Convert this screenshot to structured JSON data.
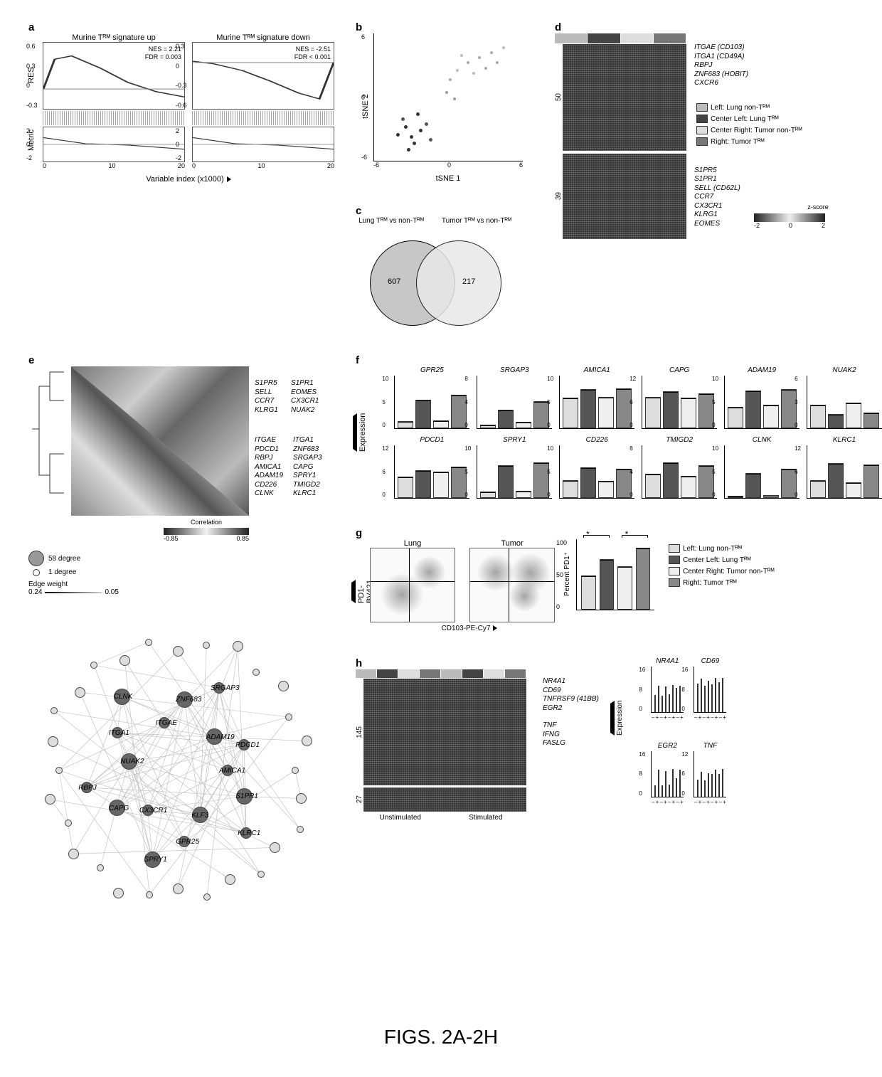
{
  "figure_caption": "FIGS. 2A-2H",
  "colors": {
    "group1": "#dddddd",
    "group2": "#555555",
    "group3": "#efefef",
    "group4": "#888888"
  },
  "panel_a": {
    "label": "a",
    "left": {
      "title": "Murine Tᴿᴹ signature up",
      "nes": "NES = 2.21",
      "fdr": "FDR = 0.003",
      "y_ticks": [
        "0.6",
        "0.3",
        "0",
        "-0.3"
      ]
    },
    "right": {
      "title": "Murine Tᴿᴹ signature down",
      "nes": "NES = -2.51",
      "fdr": "FDR < 0.001",
      "y_ticks": [
        "0.3",
        "0",
        "-0.3",
        "-0.6"
      ]
    },
    "y_label": "RES",
    "metric_label": "Metric",
    "metric_ticks": [
      "2",
      "0",
      "-2"
    ],
    "x_label": "Variable index (x1000)",
    "x_ticks": [
      "0",
      "10",
      "20"
    ]
  },
  "panel_b": {
    "label": "b",
    "x_label": "tSNE 1",
    "y_label": "tSNE 2",
    "ticks_x": [
      "-6",
      "0",
      "6"
    ],
    "ticks_y": [
      "6",
      "0",
      "-6"
    ],
    "points": [
      {
        "x": 20,
        "y": 72,
        "c": "#333",
        "s": 5
      },
      {
        "x": 24,
        "y": 80,
        "c": "#333",
        "s": 5
      },
      {
        "x": 18,
        "y": 66,
        "c": "#555",
        "s": 5
      },
      {
        "x": 30,
        "y": 75,
        "c": "#333",
        "s": 5
      },
      {
        "x": 26,
        "y": 85,
        "c": "#333",
        "s": 5
      },
      {
        "x": 15,
        "y": 78,
        "c": "#333",
        "s": 5
      },
      {
        "x": 34,
        "y": 70,
        "c": "#555",
        "s": 5
      },
      {
        "x": 28,
        "y": 62,
        "c": "#333",
        "s": 5
      },
      {
        "x": 22,
        "y": 90,
        "c": "#333",
        "s": 5
      },
      {
        "x": 37,
        "y": 82,
        "c": "#555",
        "s": 5
      },
      {
        "x": 62,
        "y": 22,
        "c": "#aaa",
        "s": 4
      },
      {
        "x": 70,
        "y": 18,
        "c": "#aaa",
        "s": 4
      },
      {
        "x": 55,
        "y": 28,
        "c": "#bbb",
        "s": 4
      },
      {
        "x": 78,
        "y": 14,
        "c": "#aaa",
        "s": 4
      },
      {
        "x": 66,
        "y": 30,
        "c": "#bbb",
        "s": 4
      },
      {
        "x": 82,
        "y": 22,
        "c": "#aaa",
        "s": 4
      },
      {
        "x": 58,
        "y": 16,
        "c": "#bbb",
        "s": 4
      },
      {
        "x": 74,
        "y": 26,
        "c": "#aaa",
        "s": 4
      },
      {
        "x": 86,
        "y": 10,
        "c": "#bbb",
        "s": 4
      },
      {
        "x": 50,
        "y": 35,
        "c": "#aaa",
        "s": 4
      },
      {
        "x": 48,
        "y": 45,
        "c": "#999",
        "s": 4
      },
      {
        "x": 53,
        "y": 50,
        "c": "#999",
        "s": 4
      }
    ]
  },
  "panel_c": {
    "label": "c",
    "left_title": "Lung Tᴿᴹ vs non-Tᴿᴹ",
    "right_title": "Tumor Tᴿᴹ vs non-Tᴿᴹ",
    "left_n": "607",
    "mid_n": "",
    "right_n": "217"
  },
  "panel_d": {
    "label": "d",
    "header_colors": [
      "#bbbbbb",
      "#444444",
      "#dedede",
      "#777777"
    ],
    "top_n": "50",
    "top_genes": [
      "ITGAE (CD103)",
      "ITGA1 (CD49A)",
      "RBPJ",
      "ZNF683 (HOBIT)",
      "CXCR6"
    ],
    "bot_n": "39",
    "bot_genes": [
      "S1PR5",
      "S1PR1",
      "SELL (CD62L)",
      "CCR7",
      "CX3CR1",
      "KLRG1",
      "EOMES"
    ],
    "legend": [
      "Left: Lung non-Tᴿᴹ",
      "Center Left: Lung Tᴿᴹ",
      "Center Right: Tumor non-Tᴿᴹ",
      "Right: Tumor Tᴿᴹ"
    ],
    "zscore_label": "z-score",
    "zscore_range": [
      "-2",
      "0",
      "2"
    ]
  },
  "panel_e": {
    "label": "e",
    "genes_block1": [
      "S1PR5",
      "S1PR1",
      "SELL",
      "EOMES",
      "CCR7",
      "CX3CR1",
      "KLRG1",
      "NUAK2"
    ],
    "genes_block2": [
      "ITGAE",
      "ITGA1",
      "PDCD1",
      "ZNF683",
      "RBPJ",
      "SRGAP3",
      "AMICA1",
      "CAPG",
      "ADAM19",
      "SPRY1",
      "CD226",
      "TMIGD2",
      "CLNK",
      "KLRC1"
    ],
    "corr_label": "Correlation",
    "corr_range": [
      "-0.85",
      "0.85"
    ],
    "degree_legend": [
      {
        "label": "58 degree",
        "size": 22
      },
      {
        "label": "1 degree",
        "size": 10
      }
    ],
    "edge_label": "Edge weight",
    "edge_range": [
      "0.24",
      "0.05"
    ],
    "network_labeled": [
      "AMICA1",
      "S1PR1",
      "KLRC1",
      "KLF3",
      "GPR25",
      "SPRY1",
      "CX3CR1",
      "CAPG",
      "RBPJ",
      "NUAK2",
      "ITGA1",
      "CLNK",
      "ITGAE",
      "ZNF683",
      "SRGAP3",
      "ADAM19",
      "PDCD1"
    ]
  },
  "panel_f": {
    "label": "f",
    "y_label": "Expression",
    "charts": [
      {
        "title": "GPR25",
        "ymax": 10,
        "vals": [
          1.3,
          5.4,
          1.5,
          6.3
        ]
      },
      {
        "title": "SRGAP3",
        "ymax": 8,
        "vals": [
          0.5,
          2.8,
          1.0,
          4.1
        ]
      },
      {
        "title": "AMICA1",
        "ymax": 10,
        "vals": [
          5.8,
          7.4,
          6.0,
          7.6
        ]
      },
      {
        "title": "CAPG",
        "ymax": 12,
        "vals": [
          7.2,
          8.5,
          7.0,
          8.0
        ]
      },
      {
        "title": "ADAM19",
        "ymax": 10,
        "vals": [
          4.0,
          7.2,
          4.5,
          7.4
        ]
      },
      {
        "title": "NUAK2",
        "ymax": 6,
        "vals": [
          2.7,
          1.6,
          2.9,
          1.8
        ]
      },
      {
        "title": "PDCD1",
        "ymax": 12,
        "vals": [
          4.8,
          6.3,
          6.0,
          7.1
        ]
      },
      {
        "title": "SPRY1",
        "ymax": 10,
        "vals": [
          1.2,
          6.2,
          1.4,
          6.8
        ]
      },
      {
        "title": "CD226",
        "ymax": 10,
        "vals": [
          3.4,
          5.8,
          3.2,
          5.6
        ]
      },
      {
        "title": "TMIGD2",
        "ymax": 8,
        "vals": [
          3.7,
          5.4,
          3.3,
          5.0
        ]
      },
      {
        "title": "CLNK",
        "ymax": 10,
        "vals": [
          0.4,
          4.7,
          0.6,
          5.6
        ]
      },
      {
        "title": "KLRC1",
        "ymax": 12,
        "vals": [
          4.1,
          7.9,
          3.6,
          7.6
        ]
      }
    ],
    "bar_colors": [
      "#dddddd",
      "#555555",
      "#efefef",
      "#888888"
    ]
  },
  "panel_g": {
    "label": "g",
    "lung_title": "Lung",
    "tumor_title": "Tumor",
    "x_axis": "CD103-PE-Cy7",
    "y_axis": "PD1-BV421",
    "bar_title": "Percent PD1⁺",
    "bar_ymax": 100,
    "bar_vals": [
      48,
      72,
      62,
      88
    ],
    "sig": [
      "*",
      "*"
    ],
    "legend": [
      "Left: Lung non-Tᴿᴹ",
      "Center Left: Lung Tᴿᴹ",
      "Center Right: Tumor non-Tᴿᴹ",
      "Right: Tumor Tᴿᴹ"
    ],
    "bar_colors": [
      "#dddddd",
      "#555555",
      "#efefef",
      "#888888"
    ]
  },
  "panel_h": {
    "label": "h",
    "header_colors": [
      "#bbbbbb",
      "#444444",
      "#dedede",
      "#777777",
      "#bbbbbb",
      "#444444",
      "#dedede",
      "#777777"
    ],
    "top_n": "145",
    "bot_n": "27",
    "genes": [
      "NR4A1",
      "CD69",
      "TNFRSF9 (41BB)",
      "EGR2",
      "",
      "TNF",
      "IFNG",
      "FASLG"
    ],
    "x_labels": [
      "Unstimulated",
      "Stimulated"
    ],
    "y_label": "Expression",
    "stim_labels": [
      "–",
      "+",
      "–",
      "+"
    ],
    "charts": [
      {
        "title": "NR4A1",
        "ymax": 16,
        "vals": [
          6.0,
          9.2,
          5.8,
          9.0,
          6.3,
          9.4,
          8.5,
          9.2
        ]
      },
      {
        "title": "CD69",
        "ymax": 16,
        "vals": [
          10.1,
          11.8,
          9.2,
          11.0,
          9.8,
          11.9,
          10.5,
          12.0
        ]
      },
      {
        "title": "EGR2",
        "ymax": 16,
        "vals": [
          4.0,
          9.4,
          3.8,
          9.0,
          4.2,
          9.6,
          6.5,
          9.5
        ]
      },
      {
        "title": "TNF",
        "ymax": 12,
        "vals": [
          4.5,
          6.5,
          4.2,
          6.1,
          6.0,
          7.0,
          5.9,
          7.2
        ]
      }
    ],
    "bar_colors": [
      "#dddddd",
      "#555555",
      "#efefef",
      "#888888"
    ]
  }
}
